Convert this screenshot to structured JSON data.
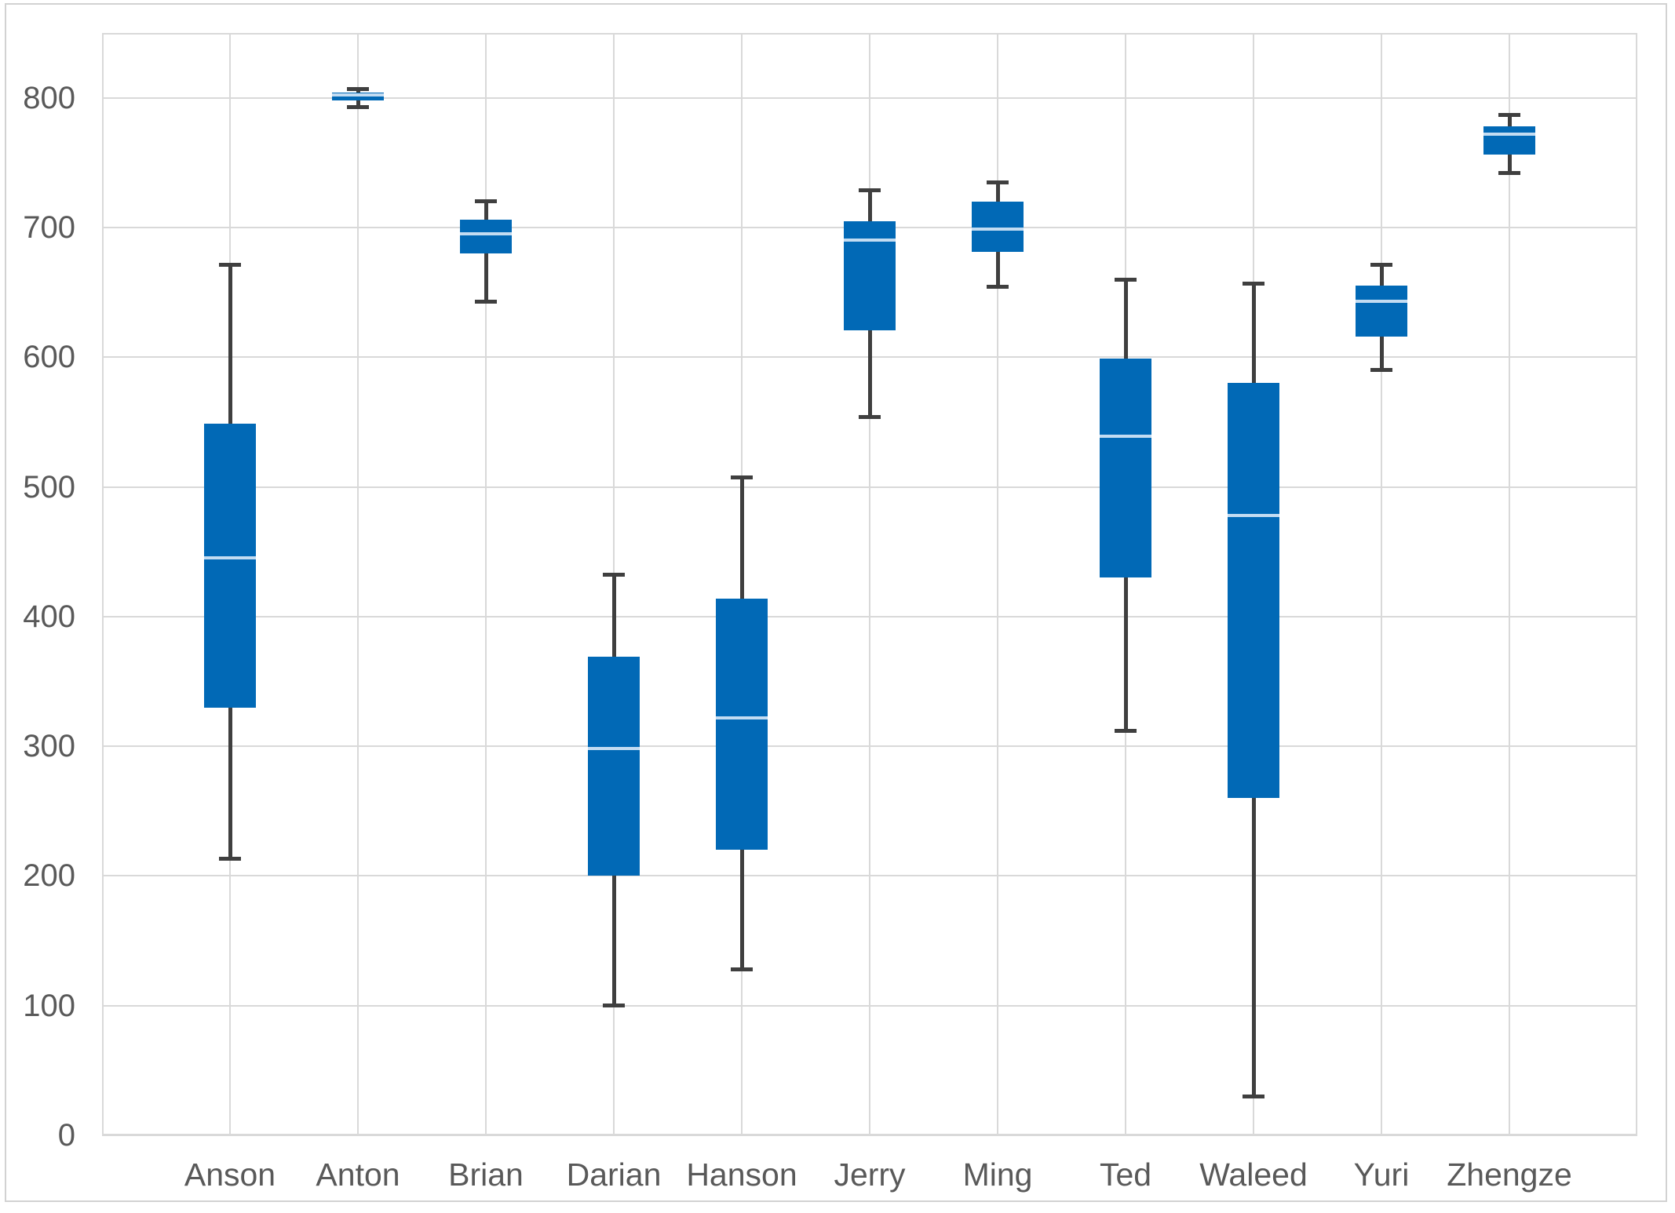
{
  "chart_data": {
    "type": "box",
    "title": "",
    "legend": false,
    "grid": {
      "horizontal": true,
      "vertical": true
    },
    "categories": [
      "Anson",
      "Anton",
      "Brian",
      "Darian",
      "Hanson",
      "Jerry",
      "Ming",
      "Ted",
      "Waleed",
      "Yuri",
      "Zhengze"
    ],
    "series": [
      {
        "category": "Anson",
        "min": 213,
        "q1": 330,
        "median": 445,
        "q3": 549,
        "max": 671
      },
      {
        "category": "Anton",
        "min": 793,
        "q1": 798,
        "median": 802,
        "q3": 804,
        "max": 807
      },
      {
        "category": "Brian",
        "min": 643,
        "q1": 680,
        "median": 695,
        "q3": 706,
        "max": 720
      },
      {
        "category": "Darian",
        "min": 100,
        "q1": 200,
        "median": 298,
        "q3": 369,
        "max": 432
      },
      {
        "category": "Hanson",
        "min": 128,
        "q1": 220,
        "median": 322,
        "q3": 414,
        "max": 507
      },
      {
        "category": "Jerry",
        "min": 554,
        "q1": 621,
        "median": 690,
        "q3": 705,
        "max": 729
      },
      {
        "category": "Ming",
        "min": 654,
        "q1": 681,
        "median": 699,
        "q3": 720,
        "max": 735
      },
      {
        "category": "Ted",
        "min": 312,
        "q1": 430,
        "median": 539,
        "q3": 599,
        "max": 660
      },
      {
        "category": "Waleed",
        "min": 30,
        "q1": 260,
        "median": 478,
        "q3": 580,
        "max": 657
      },
      {
        "category": "Yuri",
        "min": 590,
        "q1": 616,
        "median": 643,
        "q3": 655,
        "max": 671
      },
      {
        "category": "Zhengze",
        "min": 742,
        "q1": 756,
        "median": 772,
        "q3": 778,
        "max": 787
      }
    ],
    "y_axis": {
      "min": 0,
      "max": 850,
      "tick_interval": 100,
      "tick_labels": [
        "0",
        "100",
        "200",
        "300",
        "400",
        "500",
        "600",
        "700",
        "800"
      ]
    },
    "x_axis": {
      "labels": [
        "Anson",
        "Anton",
        "Brian",
        "Darian",
        "Hanson",
        "Jerry",
        "Ming",
        "Ted",
        "Waleed",
        "Yuri",
        "Zhengze"
      ]
    },
    "colors": {
      "box_fill": "#0169B6",
      "median_line": "#C3DCF2",
      "whisker": "#3F3F3F",
      "gridline": "#D9D9D9",
      "axis_label": "#595959",
      "chart_border": "#D2D2D2",
      "background": "#FFFFFF"
    }
  }
}
